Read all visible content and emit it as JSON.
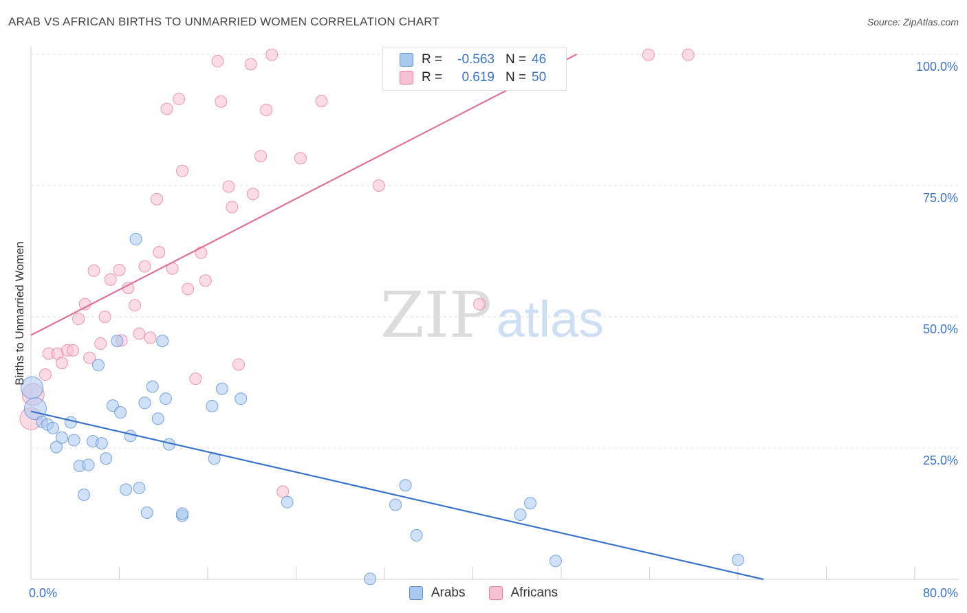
{
  "header": {
    "title": "ARAB VS AFRICAN BIRTHS TO UNMARRIED WOMEN CORRELATION CHART",
    "source": "Source: ZipAtlas.com"
  },
  "watermark": {
    "zip": "ZIP",
    "atlas": "atlas"
  },
  "legend": {
    "rows": [
      {
        "r_label": "R =",
        "r_value": "-0.563",
        "n_label": "N =",
        "n_value": "46",
        "color": "#a9c8f0",
        "border": "#5d8fd6"
      },
      {
        "r_label": "R =",
        "r_value": "0.619",
        "n_label": "N =",
        "n_value": "50",
        "color": "#f7c0d2",
        "border": "#e57fa0"
      }
    ]
  },
  "bottom_legend": {
    "arabs": "Arabs",
    "africans": "Africans"
  },
  "chart_data": {
    "type": "scatter",
    "title": "ARAB VS AFRICAN BIRTHS TO UNMARRIED WOMEN CORRELATION CHART",
    "xlabel": "",
    "ylabel": "Births to Unmarried Women",
    "xlim": [
      0,
      80
    ],
    "ylim": [
      0,
      100
    ],
    "x_tick_labels": [
      "0.0%",
      "80.0%"
    ],
    "y_tick_labels": [
      "25.0%",
      "50.0%",
      "75.0%",
      "100.0%"
    ],
    "y_ticks": [
      25,
      50,
      75,
      100
    ],
    "grid": true,
    "legend_position": "top-center",
    "series": [
      {
        "name": "Arabs",
        "color": "#a9c8f0",
        "stroke": "#5d8fd6",
        "trend_color": "#3a74c9",
        "trend": {
          "x": [
            0,
            66.3
          ],
          "y": [
            32.0,
            0.0
          ]
        },
        "points": [
          [
            0.1,
            36.5
          ],
          [
            0.4,
            32.5
          ],
          [
            1.0,
            30.0
          ],
          [
            1.5,
            29.5
          ],
          [
            2.0,
            28.8
          ],
          [
            2.3,
            25.2
          ],
          [
            2.8,
            27.0
          ],
          [
            3.6,
            29.9
          ],
          [
            3.9,
            26.5
          ],
          [
            4.4,
            21.6
          ],
          [
            4.8,
            16.1
          ],
          [
            5.2,
            21.8
          ],
          [
            5.6,
            26.3
          ],
          [
            6.1,
            40.8
          ],
          [
            6.4,
            25.9
          ],
          [
            6.8,
            23.0
          ],
          [
            7.4,
            33.1
          ],
          [
            7.8,
            45.4
          ],
          [
            8.1,
            31.8
          ],
          [
            8.6,
            17.1
          ],
          [
            9.0,
            27.3
          ],
          [
            9.5,
            64.8
          ],
          [
            9.8,
            17.4
          ],
          [
            10.3,
            33.6
          ],
          [
            10.5,
            12.7
          ],
          [
            11.0,
            36.7
          ],
          [
            11.5,
            30.6
          ],
          [
            11.9,
            45.4
          ],
          [
            12.2,
            34.4
          ],
          [
            12.5,
            25.7
          ],
          [
            13.7,
            12.1
          ],
          [
            13.7,
            12.5
          ],
          [
            16.4,
            33.0
          ],
          [
            16.6,
            23.0
          ],
          [
            17.3,
            36.3
          ],
          [
            19.0,
            34.4
          ],
          [
            23.2,
            14.7
          ],
          [
            30.7,
            0.1
          ],
          [
            33.0,
            14.2
          ],
          [
            33.9,
            17.9
          ],
          [
            34.9,
            8.4
          ],
          [
            44.3,
            12.3
          ],
          [
            45.2,
            14.5
          ],
          [
            47.5,
            3.5
          ],
          [
            64.0,
            3.7
          ]
        ],
        "big_points": [
          [
            0.1,
            36.5
          ],
          [
            0.4,
            32.5
          ]
        ]
      },
      {
        "name": "Africans",
        "color": "#f7c0d2",
        "stroke": "#e57fa0",
        "trend_color": "#e07096",
        "trend": {
          "x": [
            0,
            49.4
          ],
          "y": [
            46.5,
            100.0
          ]
        },
        "points": [
          [
            0.0,
            30.6
          ],
          [
            0.2,
            35.2
          ],
          [
            1.3,
            39.0
          ],
          [
            1.6,
            43.0
          ],
          [
            2.4,
            43.0
          ],
          [
            2.8,
            41.2
          ],
          [
            3.3,
            43.6
          ],
          [
            3.8,
            43.6
          ],
          [
            4.3,
            49.6
          ],
          [
            4.9,
            52.4
          ],
          [
            5.3,
            42.2
          ],
          [
            5.7,
            58.8
          ],
          [
            6.3,
            44.9
          ],
          [
            6.7,
            50.0
          ],
          [
            7.2,
            57.1
          ],
          [
            8.0,
            58.9
          ],
          [
            8.2,
            45.5
          ],
          [
            8.8,
            55.5
          ],
          [
            9.4,
            52.2
          ],
          [
            9.8,
            46.8
          ],
          [
            10.3,
            59.6
          ],
          [
            10.8,
            46.0
          ],
          [
            11.4,
            72.4
          ],
          [
            11.6,
            62.3
          ],
          [
            12.3,
            89.6
          ],
          [
            12.8,
            59.2
          ],
          [
            13.4,
            91.5
          ],
          [
            13.7,
            77.8
          ],
          [
            14.2,
            55.3
          ],
          [
            14.9,
            38.2
          ],
          [
            15.4,
            62.2
          ],
          [
            15.8,
            56.9
          ],
          [
            16.9,
            98.7
          ],
          [
            17.2,
            91.0
          ],
          [
            17.9,
            74.8
          ],
          [
            18.2,
            70.9
          ],
          [
            18.8,
            40.9
          ],
          [
            19.9,
            98.1
          ],
          [
            20.1,
            73.4
          ],
          [
            20.8,
            80.6
          ],
          [
            21.3,
            89.4
          ],
          [
            21.8,
            99.9
          ],
          [
            22.8,
            16.7
          ],
          [
            24.4,
            80.2
          ],
          [
            26.3,
            91.1
          ],
          [
            31.5,
            75.0
          ],
          [
            40.6,
            52.4
          ],
          [
            55.9,
            99.9
          ],
          [
            59.5,
            99.9
          ]
        ],
        "big_points": [
          [
            0.0,
            30.6
          ],
          [
            0.2,
            35.2
          ]
        ]
      }
    ]
  }
}
